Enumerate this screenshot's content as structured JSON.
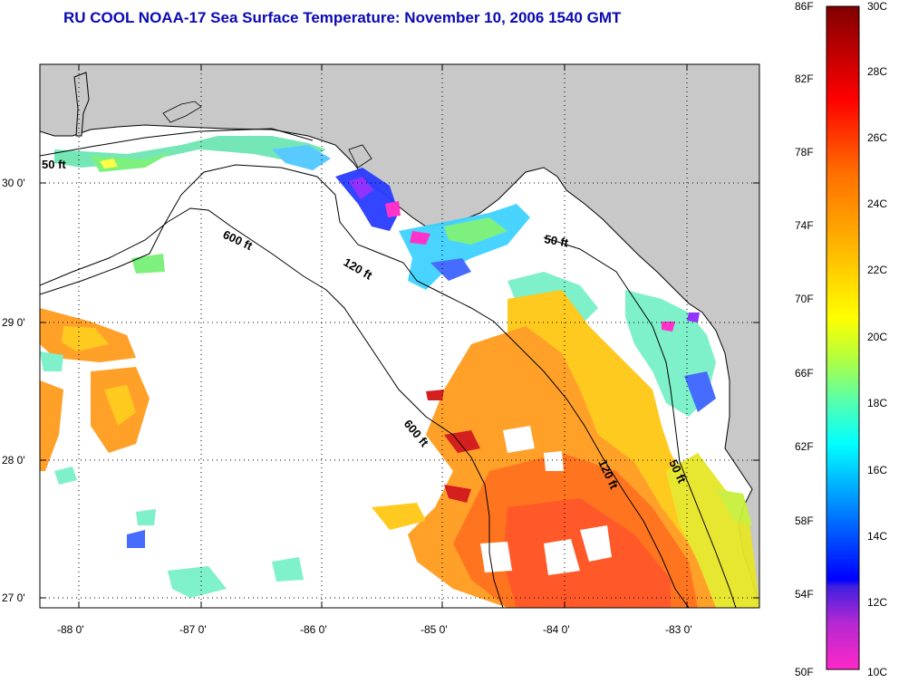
{
  "title": "RU COOL  NOAA-17  Sea Surface Temperature:  November 10, 2006 1540 GMT",
  "map": {
    "lon_labels": [
      "-88 0'",
      "-87 0'",
      "-86 0'",
      "-85 0'",
      "-84 0'",
      "-83 0'"
    ],
    "lat_labels": [
      "30 0'",
      "29 0'",
      "28 0'",
      "27 0'"
    ],
    "contour_labels": [
      "50 ft",
      "600 ft",
      "120 ft",
      "50 ft",
      "600 ft",
      "120 ft",
      "50 ft"
    ],
    "land_color": "#c8c8c8",
    "ocean_color": "#ffffff"
  },
  "colorbar": {
    "fahrenheit_labels": [
      "86F",
      "82F",
      "78F",
      "74F",
      "70F",
      "66F",
      "62F",
      "58F",
      "54F",
      "50F"
    ],
    "celsius_labels": [
      "30C",
      "28C",
      "26C",
      "24C",
      "22C",
      "20C",
      "18C",
      "16C",
      "14C",
      "12C",
      "10C"
    ]
  }
}
